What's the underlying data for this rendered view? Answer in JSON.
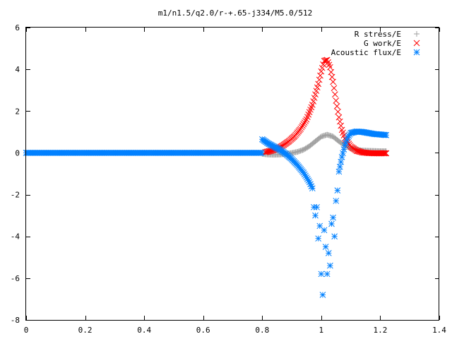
{
  "chart_data": {
    "type": "scatter",
    "title": "m1/n1.5/q2.0/r-+.65-j334/M5.0/512",
    "xlabel": "",
    "ylabel": "",
    "xlim": [
      0,
      1.4
    ],
    "ylim": [
      -8,
      6
    ],
    "x_ticks": [
      "0",
      "0.2",
      "0.4",
      "0.6",
      "0.8",
      "1",
      "1.2",
      "1.4"
    ],
    "y_ticks": [
      "6",
      "4",
      "2",
      "0",
      "-2",
      "-4",
      "-6",
      "-8"
    ],
    "grid": false,
    "legend_position": "top-right",
    "series": [
      {
        "name": "R stress/E",
        "marker": "+",
        "color": "#a0a0a0",
        "x": [
          0.8,
          0.82,
          0.84,
          0.86,
          0.88,
          0.9,
          0.92,
          0.94,
          0.96,
          0.98,
          1.0,
          1.02,
          1.04,
          1.06,
          1.08,
          1.1,
          1.12,
          1.14,
          1.16,
          1.18,
          1.2,
          1.22
        ],
        "y": [
          -0.05,
          -0.08,
          -0.09,
          -0.08,
          -0.05,
          -0.01,
          0.05,
          0.15,
          0.32,
          0.55,
          0.78,
          0.87,
          0.78,
          0.55,
          0.35,
          0.22,
          0.15,
          0.11,
          0.1,
          0.09,
          0.08,
          0.08
        ]
      },
      {
        "name": "G work/E",
        "marker": "x",
        "color": "#ff0000",
        "x": [
          0.81,
          0.83,
          0.85,
          0.87,
          0.89,
          0.91,
          0.93,
          0.95,
          0.97,
          0.99,
          1.0,
          1.01,
          1.02,
          1.03,
          1.04,
          1.05,
          1.06,
          1.07,
          1.08,
          1.1,
          1.12,
          1.14,
          1.16,
          1.18,
          1.2,
          1.22
        ],
        "y": [
          0.03,
          0.1,
          0.2,
          0.35,
          0.55,
          0.8,
          1.15,
          1.6,
          2.3,
          3.3,
          3.9,
          4.4,
          4.45,
          4.1,
          3.4,
          2.5,
          1.7,
          1.1,
          0.7,
          0.3,
          0.1,
          0.02,
          -0.01,
          -0.02,
          -0.02,
          -0.02
        ]
      },
      {
        "name": "Acoustic flux/E",
        "marker": "*",
        "color": "#0080ff",
        "x": [
          0.8,
          0.82,
          0.84,
          0.86,
          0.88,
          0.9,
          0.92,
          0.94,
          0.96,
          0.97,
          0.975,
          0.98,
          0.985,
          0.99,
          0.995,
          1.0,
          1.005,
          1.01,
          1.015,
          1.02,
          1.025,
          1.03,
          1.035,
          1.04,
          1.045,
          1.05,
          1.055,
          1.06,
          1.07,
          1.08,
          1.09,
          1.1,
          1.12,
          1.14,
          1.16,
          1.18,
          1.2,
          1.22
        ],
        "y": [
          0.65,
          0.45,
          0.3,
          0.15,
          -0.05,
          -0.3,
          -0.6,
          -0.95,
          -1.4,
          -1.7,
          -2.6,
          -3.0,
          -2.6,
          -4.1,
          -3.5,
          -5.8,
          -6.8,
          -3.7,
          -4.5,
          -5.8,
          -4.8,
          -5.4,
          -3.4,
          -3.1,
          -4.0,
          -2.3,
          -1.8,
          -0.9,
          -0.2,
          0.35,
          0.75,
          0.95,
          1.02,
          1.0,
          0.95,
          0.9,
          0.88,
          0.85
        ]
      }
    ]
  }
}
